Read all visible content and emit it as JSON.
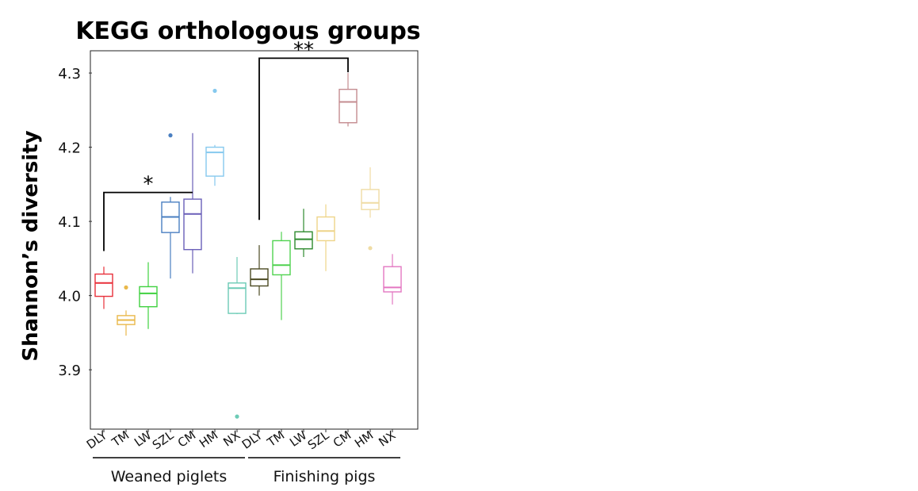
{
  "chart_data": {
    "type": "box",
    "title": "KEGG orthologous groups",
    "ylabel": "Shannon’s diversity",
    "xlabel": "",
    "ylim": [
      3.82,
      4.33
    ],
    "yticks": [
      3.9,
      4.0,
      4.1,
      4.2,
      4.3
    ],
    "ytick_labels": [
      "3.9",
      "4.0",
      "4.1",
      "4.2",
      "4.3"
    ],
    "categories": [
      "DLY",
      "TM",
      "LW",
      "SZL",
      "CM",
      "HM",
      "NX",
      "DLY",
      "TM",
      "LW",
      "SZL",
      "CM",
      "HM",
      "NX"
    ],
    "groups": [
      {
        "label": "Weaned piglets",
        "members": [
          "DLY",
          "TM",
          "LW",
          "SZL",
          "CM",
          "HM",
          "NX"
        ]
      },
      {
        "label": "Finishing pigs",
        "members": [
          "DLY",
          "TM",
          "LW",
          "SZL",
          "CM",
          "HM",
          "NX"
        ]
      }
    ],
    "boxes": [
      {
        "group": "Weaned piglets",
        "name": "DLY",
        "color": "#e8303a",
        "whisker_low": 3.982,
        "q1": 3.999,
        "median": 4.017,
        "q3": 4.029,
        "whisker_high": 4.039,
        "outliers": []
      },
      {
        "group": "Weaned piglets",
        "name": "TM",
        "color": "#e9b84a",
        "whisker_low": 3.946,
        "q1": 3.961,
        "median": 3.967,
        "q3": 3.973,
        "whisker_high": 3.98,
        "outliers": [
          4.011
        ]
      },
      {
        "group": "Weaned piglets",
        "name": "LW",
        "color": "#3fd13f",
        "whisker_low": 3.955,
        "q1": 3.985,
        "median": 4.003,
        "q3": 4.012,
        "whisker_high": 4.045,
        "outliers": []
      },
      {
        "group": "Weaned piglets",
        "name": "SZL",
        "color": "#4a7fc1",
        "whisker_low": 4.023,
        "q1": 4.085,
        "median": 4.106,
        "q3": 4.126,
        "whisker_high": 4.133,
        "outliers": [
          4.216
        ]
      },
      {
        "group": "Weaned piglets",
        "name": "CM",
        "color": "#6a5fb8",
        "whisker_low": 4.03,
        "q1": 4.062,
        "median": 4.11,
        "q3": 4.13,
        "whisker_high": 4.219,
        "outliers": []
      },
      {
        "group": "Weaned piglets",
        "name": "HM",
        "color": "#86c9ee",
        "whisker_low": 4.148,
        "q1": 4.161,
        "median": 4.193,
        "q3": 4.2,
        "whisker_high": 4.203,
        "outliers": [
          4.276
        ]
      },
      {
        "group": "Weaned piglets",
        "name": "NX",
        "color": "#6dcbb6",
        "whisker_low": 3.975,
        "q1": 3.976,
        "median": 4.01,
        "q3": 4.017,
        "whisker_high": 4.052,
        "outliers": [
          3.837
        ]
      },
      {
        "group": "Finishing pigs",
        "name": "DLY",
        "color": "#4b4a22",
        "whisker_low": 4.0,
        "q1": 4.013,
        "median": 4.022,
        "q3": 4.036,
        "whisker_high": 4.068,
        "outliers": []
      },
      {
        "group": "Finishing pigs",
        "name": "TM",
        "color": "#4fd24f",
        "whisker_low": 3.967,
        "q1": 4.028,
        "median": 4.041,
        "q3": 4.074,
        "whisker_high": 4.086,
        "outliers": []
      },
      {
        "group": "Finishing pigs",
        "name": "LW",
        "color": "#2e8a2e",
        "whisker_low": 4.052,
        "q1": 4.063,
        "median": 4.076,
        "q3": 4.086,
        "whisker_high": 4.117,
        "outliers": []
      },
      {
        "group": "Finishing pigs",
        "name": "SZL",
        "color": "#eed488",
        "whisker_low": 4.033,
        "q1": 4.074,
        "median": 4.087,
        "q3": 4.106,
        "whisker_high": 4.123,
        "outliers": []
      },
      {
        "group": "Finishing pigs",
        "name": "CM",
        "color": "#c48c90",
        "whisker_low": 4.228,
        "q1": 4.233,
        "median": 4.261,
        "q3": 4.278,
        "whisker_high": 4.3,
        "outliers": []
      },
      {
        "group": "Finishing pigs",
        "name": "HM",
        "color": "#efdca4",
        "whisker_low": 4.105,
        "q1": 4.116,
        "median": 4.125,
        "q3": 4.143,
        "whisker_high": 4.173,
        "outliers": [
          4.064
        ]
      },
      {
        "group": "Finishing pigs",
        "name": "NX",
        "color": "#e377c2",
        "whisker_low": 3.988,
        "q1": 4.005,
        "median": 4.011,
        "q3": 4.039,
        "whisker_high": 4.056,
        "outliers": []
      }
    ],
    "annotations": [
      {
        "label": "*",
        "from_index": 0,
        "to_index": 4,
        "from_value": 4.06,
        "to_value": 4.139,
        "bracket_value": 4.139
      },
      {
        "label": "**",
        "from_index": 7,
        "to_index": 11,
        "from_value": 4.102,
        "to_value": 4.301,
        "bracket_value": 4.32
      }
    ],
    "grid": false,
    "legend": "none"
  }
}
